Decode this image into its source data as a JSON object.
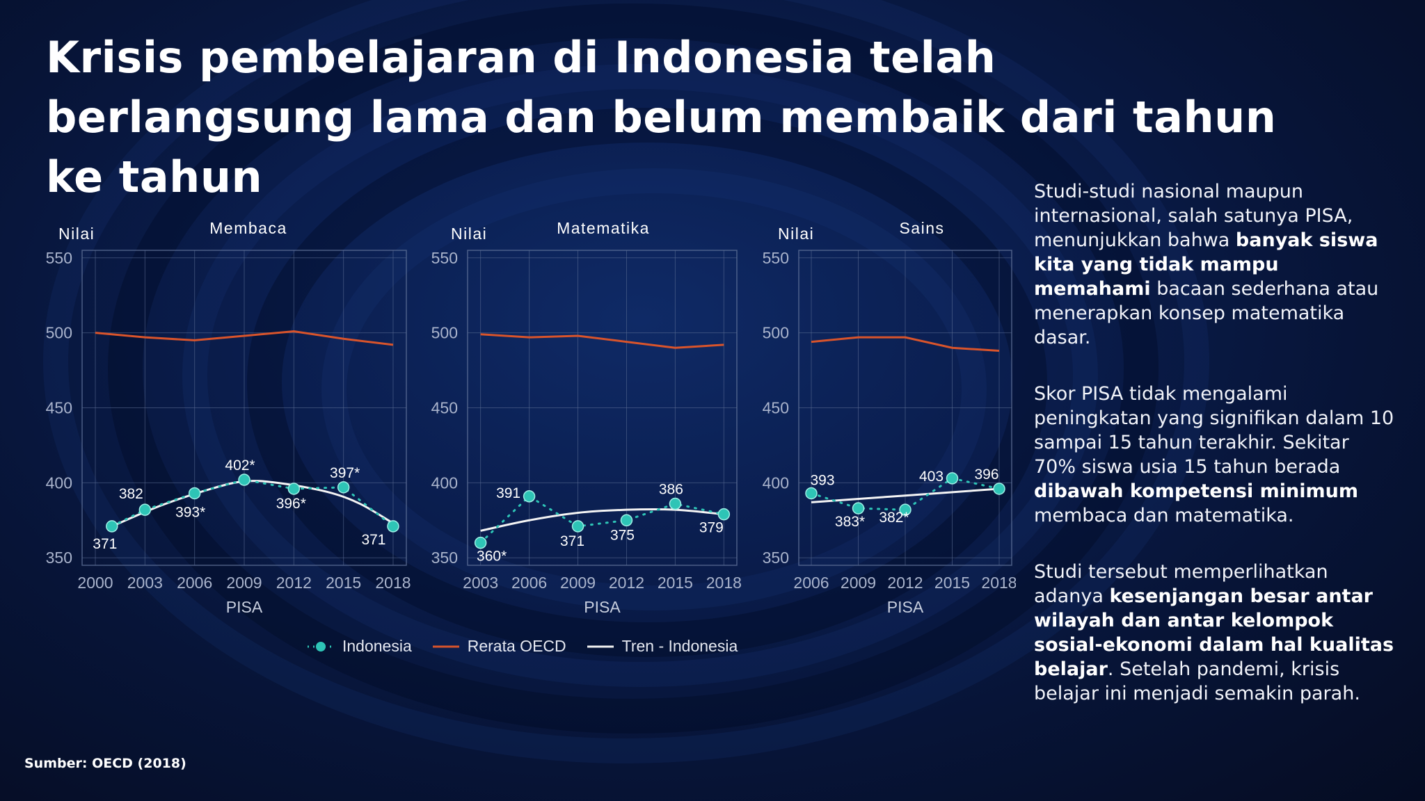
{
  "title": "Krisis pembelajaran di Indonesia telah berlangsung lama dan belum membaik dari tahun ke tahun",
  "source": "Sumber: OECD (2018)",
  "paragraphs": [
    [
      {
        "text": "Studi-studi nasional maupun internasional, salah satunya PISA, menunjukkan bahwa ",
        "bold": false
      },
      {
        "text": "banyak siswa kita yang tidak mampu memahami",
        "bold": true
      },
      {
        "text": " bacaan sederhana atau menerapkan konsep matematika dasar.",
        "bold": false
      }
    ],
    [
      {
        "text": "Skor PISA tidak mengalami peningkatan yang signifikan  dalam 10 sampai 15 tahun terakhir. Sekitar 70% siswa usia 15 tahun berada ",
        "bold": false
      },
      {
        "text": "dibawah kompetensi minimum",
        "bold": true
      },
      {
        "text": " membaca dan matematika.",
        "bold": false
      }
    ],
    [
      {
        "text": "Studi tersebut memperlihatkan adanya ",
        "bold": false
      },
      {
        "text": "kesenjangan besar antar wilayah dan antar kelompok sosial-ekonomi dalam hal kualitas belajar",
        "bold": true
      },
      {
        "text": ". Setelah pandemi, krisis belajar ini menjadi semakin parah.",
        "bold": false
      }
    ]
  ],
  "legend": {
    "indonesia": "Indonesia",
    "oecd": "Rerata OECD",
    "trend": "Tren - Indonesia"
  },
  "colors": {
    "indonesia": "#2ec4b6",
    "oecd": "#d9542b",
    "trend": "#f4f4f4",
    "grid": "#5d6f96"
  },
  "chart_data": [
    {
      "type": "line",
      "title": "Membaca",
      "ylabel": "Nilai",
      "xlabel": "PISA",
      "ylim": [
        345,
        555
      ],
      "yticks": [
        350,
        400,
        450,
        500,
        550
      ],
      "xticks": [
        2000,
        2003,
        2006,
        2009,
        2012,
        2015,
        2018
      ],
      "xlim": [
        1999.2,
        2018.8
      ],
      "series": [
        {
          "name": "Indonesia",
          "x": [
            2001,
            2003,
            2006,
            2009,
            2012,
            2015,
            2018
          ],
          "values": [
            371,
            382,
            393,
            402,
            396,
            397,
            371
          ],
          "labels": [
            "371",
            "382",
            "393*",
            "402*",
            "396*",
            "397*",
            "371"
          ]
        },
        {
          "name": "Rerata OECD",
          "x": [
            2000,
            2003,
            2006,
            2009,
            2012,
            2015,
            2018
          ],
          "values": [
            500,
            497,
            495,
            498,
            501,
            496,
            492
          ]
        },
        {
          "name": "Tren - Indonesia",
          "x": [
            2001,
            2004,
            2007,
            2009,
            2011,
            2014,
            2016,
            2018
          ],
          "values": [
            371,
            385,
            396,
            401,
            400,
            394,
            386,
            373
          ]
        }
      ]
    },
    {
      "type": "line",
      "title": "Matematika",
      "ylabel": "Nilai",
      "xlabel": "PISA",
      "ylim": [
        345,
        555
      ],
      "yticks": [
        350,
        400,
        450,
        500,
        550
      ],
      "xticks": [
        2003,
        2006,
        2009,
        2012,
        2015,
        2018
      ],
      "xlim": [
        2002.2,
        2018.8
      ],
      "series": [
        {
          "name": "Indonesia",
          "x": [
            2003,
            2006,
            2009,
            2012,
            2015,
            2018
          ],
          "values": [
            360,
            391,
            371,
            375,
            386,
            379
          ],
          "labels": [
            "360*",
            "391",
            "371",
            "375",
            "386",
            "379"
          ]
        },
        {
          "name": "Rerata OECD",
          "x": [
            2003,
            2006,
            2009,
            2012,
            2015,
            2018
          ],
          "values": [
            499,
            497,
            498,
            494,
            490,
            492
          ]
        },
        {
          "name": "Tren - Indonesia",
          "x": [
            2003,
            2006,
            2009,
            2012,
            2015,
            2018
          ],
          "values": [
            368,
            375,
            380,
            382,
            382,
            379
          ]
        }
      ]
    },
    {
      "type": "line",
      "title": "Sains",
      "ylabel": "Nilai",
      "xlabel": "PISA",
      "ylim": [
        345,
        555
      ],
      "yticks": [
        350,
        400,
        450,
        500,
        550
      ],
      "xticks": [
        2006,
        2009,
        2012,
        2015,
        2018
      ],
      "xlim": [
        2005.2,
        2018.8
      ],
      "series": [
        {
          "name": "Indonesia",
          "x": [
            2006,
            2009,
            2012,
            2015,
            2018
          ],
          "values": [
            393,
            383,
            382,
            403,
            396
          ],
          "labels": [
            "393",
            "383*",
            "382*",
            "403",
            "396"
          ]
        },
        {
          "name": "Rerata OECD",
          "x": [
            2006,
            2009,
            2012,
            2015,
            2018
          ],
          "values": [
            494,
            497,
            497,
            490,
            488
          ]
        },
        {
          "name": "Tren - Indonesia",
          "x": [
            2006,
            2018
          ],
          "values": [
            387,
            396
          ]
        }
      ]
    }
  ]
}
